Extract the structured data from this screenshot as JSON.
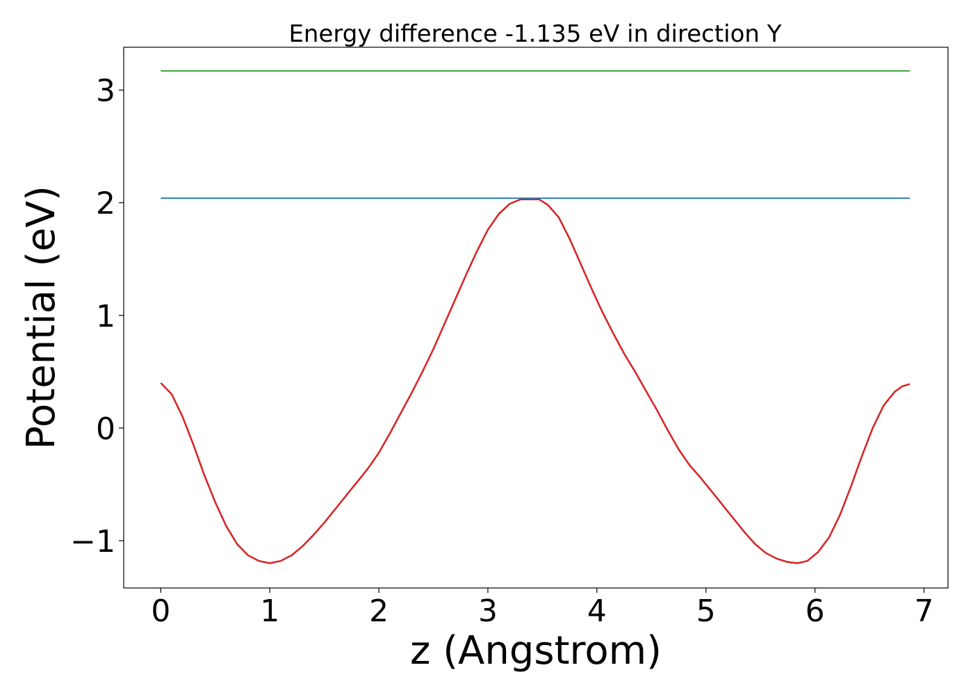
{
  "chart_data": {
    "type": "line",
    "title": "Energy difference -1.135 eV in direction Y",
    "xlabel": "z (Angstrom)",
    "ylabel": "Potential (eV)",
    "xlim": [
      -0.34,
      7.22
    ],
    "ylim": [
      -1.42,
      3.38
    ],
    "xticks": [
      0,
      1,
      2,
      3,
      4,
      5,
      6,
      7
    ],
    "xtick_labels": [
      "0",
      "1",
      "2",
      "3",
      "4",
      "5",
      "6",
      "7"
    ],
    "yticks": [
      -1,
      0,
      1,
      2,
      3
    ],
    "ytick_labels": [
      "−1",
      "0",
      "1",
      "2",
      "3"
    ],
    "grid": false,
    "series": [
      {
        "color": "#d62728",
        "x": [
          0,
          0.1,
          0.2,
          0.3,
          0.4,
          0.5,
          0.6,
          0.7,
          0.8,
          0.9,
          1.0,
          1.1,
          1.2,
          1.3,
          1.4,
          1.5,
          1.6,
          1.7,
          1.8,
          1.9,
          2.0,
          2.1,
          2.2,
          2.3,
          2.4,
          2.5,
          2.6,
          2.7,
          2.8,
          2.9,
          3.0,
          3.1,
          3.2,
          3.3,
          3.4,
          3.47,
          3.55,
          3.65,
          3.75,
          3.85,
          3.95,
          4.05,
          4.15,
          4.25,
          4.35,
          4.45,
          4.55,
          4.65,
          4.75,
          4.85,
          4.95,
          5.05,
          5.15,
          5.25,
          5.35,
          5.45,
          5.55,
          5.65,
          5.75,
          5.84,
          5.93,
          6.03,
          6.13,
          6.23,
          6.33,
          6.43,
          6.53,
          6.63,
          6.73,
          6.8,
          6.87
        ],
        "y": [
          0.4,
          0.3,
          0.1,
          -0.15,
          -0.42,
          -0.66,
          -0.87,
          -1.03,
          -1.13,
          -1.18,
          -1.2,
          -1.18,
          -1.13,
          -1.05,
          -0.95,
          -0.84,
          -0.72,
          -0.6,
          -0.48,
          -0.36,
          -0.22,
          -0.05,
          0.13,
          0.31,
          0.5,
          0.7,
          0.92,
          1.14,
          1.36,
          1.57,
          1.76,
          1.9,
          1.99,
          2.03,
          2.03,
          2.03,
          1.98,
          1.87,
          1.68,
          1.46,
          1.24,
          1.03,
          0.84,
          0.66,
          0.5,
          0.33,
          0.16,
          -0.02,
          -0.19,
          -0.33,
          -0.44,
          -0.56,
          -0.68,
          -0.8,
          -0.92,
          -1.03,
          -1.11,
          -1.16,
          -1.19,
          -1.2,
          -1.18,
          -1.1,
          -0.97,
          -0.77,
          -0.52,
          -0.25,
          0.0,
          0.2,
          0.32,
          0.37,
          0.39
        ]
      },
      {
        "color": "#1f77b4",
        "x": [
          0,
          6.87
        ],
        "y": [
          2.04,
          2.04
        ]
      },
      {
        "color": "#2ca02c",
        "x": [
          0,
          6.87
        ],
        "y": [
          3.17,
          3.17
        ]
      }
    ]
  }
}
